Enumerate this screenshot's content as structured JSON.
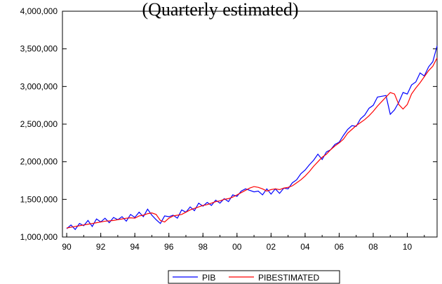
{
  "title": "(Quarterly estimated)",
  "chart_data": {
    "type": "line",
    "title": "(Quarterly estimated)",
    "xlabel": "",
    "ylabel": "",
    "x_start": 1990.0,
    "x_step": 0.25,
    "xlim": [
      1989.75,
      2011.75
    ],
    "ylim": [
      1000000,
      4000000
    ],
    "yticks": [
      1000000,
      1500000,
      2000000,
      2500000,
      3000000,
      3500000,
      4000000
    ],
    "ytick_labels": [
      "1,000,000",
      "1,500,000",
      "2,000,000",
      "2,500,000",
      "3,000,000",
      "3,500,000",
      "4,000,000"
    ],
    "xticks": [
      1990,
      1992,
      1994,
      1996,
      1998,
      2000,
      2002,
      2004,
      2006,
      2008,
      2010
    ],
    "xtick_labels": [
      "90",
      "92",
      "94",
      "96",
      "98",
      "00",
      "02",
      "04",
      "06",
      "08",
      "10"
    ],
    "grid": false,
    "legend_position": "bottom-center",
    "series": [
      {
        "name": "PIB",
        "color": "#0000ff",
        "values": [
          1110000,
          1160000,
          1100000,
          1180000,
          1150000,
          1220000,
          1140000,
          1240000,
          1200000,
          1250000,
          1190000,
          1260000,
          1230000,
          1270000,
          1210000,
          1300000,
          1260000,
          1330000,
          1270000,
          1370000,
          1290000,
          1230000,
          1180000,
          1280000,
          1270000,
          1290000,
          1250000,
          1360000,
          1330000,
          1400000,
          1350000,
          1450000,
          1410000,
          1460000,
          1420000,
          1490000,
          1450000,
          1510000,
          1470000,
          1560000,
          1540000,
          1610000,
          1640000,
          1620000,
          1600000,
          1610000,
          1560000,
          1640000,
          1570000,
          1640000,
          1580000,
          1650000,
          1640000,
          1720000,
          1760000,
          1840000,
          1890000,
          1960000,
          2020000,
          2100000,
          2030000,
          2130000,
          2160000,
          2230000,
          2260000,
          2350000,
          2430000,
          2480000,
          2470000,
          2570000,
          2620000,
          2710000,
          2750000,
          2860000,
          2870000,
          2880000,
          2630000,
          2690000,
          2790000,
          2920000,
          2900000,
          3020000,
          3060000,
          3180000,
          3140000,
          3260000,
          3330000,
          3540000
        ]
      },
      {
        "name": "PIBESTIMATED",
        "color": "#ff0000",
        "values": [
          1120000,
          1130000,
          1140000,
          1150000,
          1160000,
          1170000,
          1180000,
          1190000,
          1200000,
          1210000,
          1215000,
          1220000,
          1230000,
          1240000,
          1250000,
          1255000,
          1250000,
          1280000,
          1290000,
          1310000,
          1320000,
          1300000,
          1220000,
          1200000,
          1250000,
          1280000,
          1290000,
          1300000,
          1330000,
          1360000,
          1380000,
          1400000,
          1420000,
          1430000,
          1450000,
          1470000,
          1480000,
          1500000,
          1510000,
          1530000,
          1560000,
          1590000,
          1620000,
          1650000,
          1670000,
          1660000,
          1640000,
          1610000,
          1630000,
          1640000,
          1630000,
          1650000,
          1660000,
          1680000,
          1720000,
          1760000,
          1810000,
          1870000,
          1940000,
          2000000,
          2060000,
          2100000,
          2160000,
          2210000,
          2250000,
          2300000,
          2380000,
          2430000,
          2480000,
          2520000,
          2560000,
          2610000,
          2670000,
          2740000,
          2800000,
          2860000,
          2920000,
          2900000,
          2760000,
          2700000,
          2760000,
          2900000,
          2980000,
          3050000,
          3130000,
          3210000,
          3270000,
          3380000
        ]
      }
    ]
  }
}
